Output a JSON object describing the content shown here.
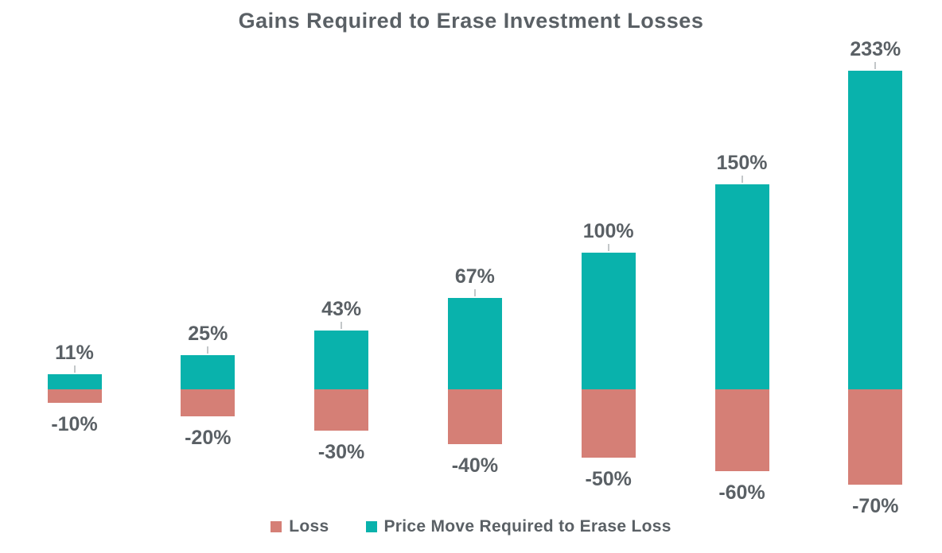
{
  "title": "Gains Required to Erase Investment Losses",
  "colors": {
    "gain": "#09b2ac",
    "loss": "#d57f76",
    "text": "#5a6065",
    "leader_tick": "#c3c7c9",
    "background": "#ffffff"
  },
  "legend": {
    "items": [
      {
        "label": "Loss",
        "color": "#d57f76"
      },
      {
        "label": "Price Move Required to Erase Loss",
        "color": "#09b2ac"
      }
    ]
  },
  "chart_data": {
    "type": "bar",
    "subtype": "diverging-stacked-column",
    "title": "Gains Required to Erase Investment Losses",
    "categories": [
      "-10%",
      "-20%",
      "-30%",
      "-40%",
      "-50%",
      "-60%",
      "-70%"
    ],
    "series": [
      {
        "name": "Loss",
        "color": "#d57f76",
        "values": [
          -10,
          -20,
          -30,
          -40,
          -50,
          -60,
          -70
        ],
        "labels": [
          "-10%",
          "-20%",
          "-30%",
          "-40%",
          "-50%",
          "-60%",
          "-70%"
        ],
        "label_position": "below-bar"
      },
      {
        "name": "Price Move Required to Erase Loss",
        "color": "#09b2ac",
        "values": [
          11,
          25,
          43,
          67,
          100,
          150,
          233
        ],
        "labels": [
          "11%",
          "25%",
          "43%",
          "67%",
          "100%",
          "150%",
          "233%"
        ],
        "label_position": "above-bar"
      }
    ],
    "ylim": [
      -70,
      233
    ],
    "xlabel": "",
    "ylabel": "",
    "grid": false,
    "axes_visible": false,
    "data_labels": true,
    "legend_position": "bottom"
  }
}
